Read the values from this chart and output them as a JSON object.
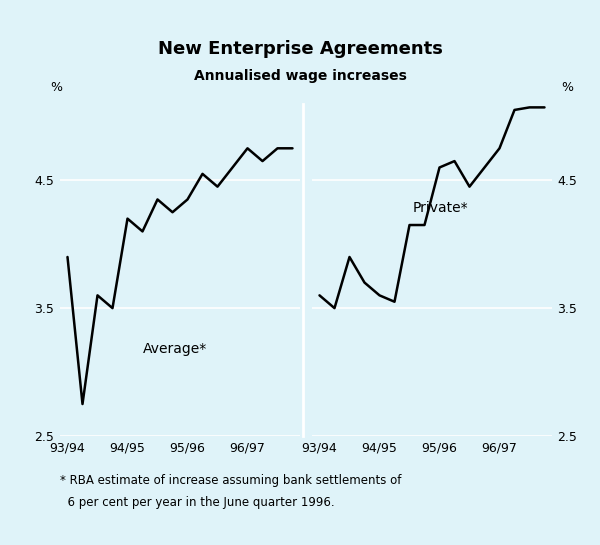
{
  "title": "New Enterprise Agreements",
  "subtitle": "Annualised wage increases",
  "background_color": "#dff3f9",
  "line_color": "#000000",
  "ylim": [
    2.5,
    5.1
  ],
  "yticks": [
    2.5,
    3.5,
    4.5
  ],
  "ytick_labels": [
    "2.5",
    "3.5",
    "4.5"
  ],
  "footnote_line1": "* RBA estimate of increase assuming bank settlements of",
  "footnote_line2": "  6 per cent per year in the June quarter 1996.",
  "left_label": "Average*",
  "right_label": "Private*",
  "xtick_labels": [
    "93/94",
    "94/95",
    "95/96",
    "96/97"
  ],
  "avg_x": [
    0,
    1,
    2,
    3,
    4,
    5,
    6,
    7,
    8,
    9,
    10,
    11,
    12,
    13,
    14,
    15
  ],
  "avg_y": [
    3.9,
    2.75,
    3.6,
    3.5,
    4.2,
    4.1,
    4.35,
    4.25,
    4.35,
    4.55,
    4.45,
    4.6,
    4.75,
    4.65,
    4.75,
    4.75
  ],
  "priv_x": [
    0,
    1,
    2,
    3,
    4,
    5,
    6,
    7,
    8,
    9,
    10,
    11,
    12,
    13,
    14,
    15
  ],
  "priv_y": [
    3.6,
    3.5,
    3.9,
    3.7,
    3.6,
    3.55,
    4.15,
    4.15,
    4.6,
    4.65,
    4.45,
    4.6,
    4.75,
    5.05,
    5.07,
    5.07
  ]
}
